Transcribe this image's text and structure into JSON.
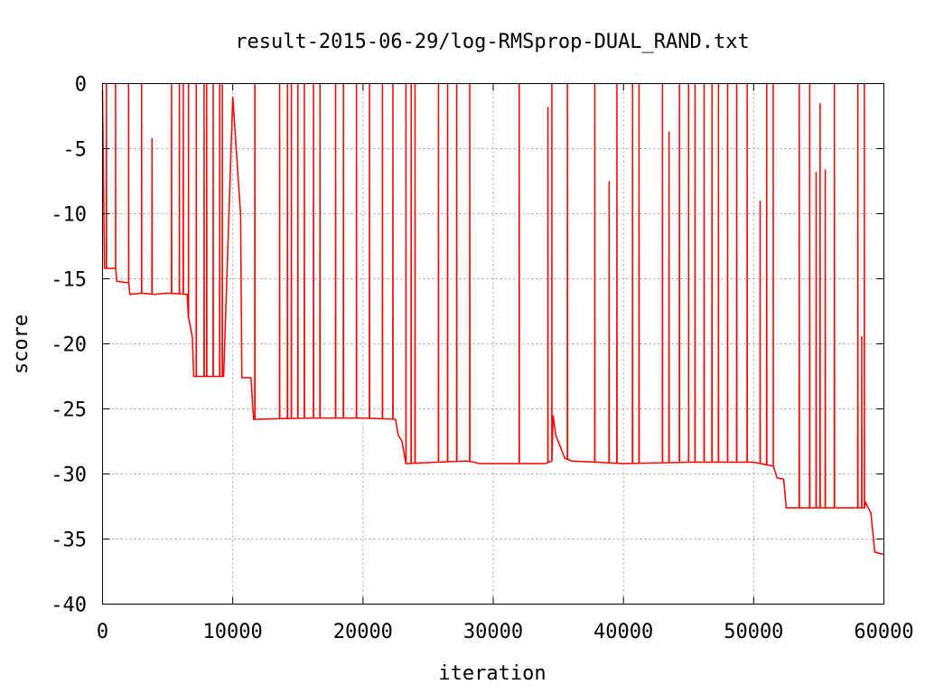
{
  "chart_data": {
    "type": "line",
    "title": "result-2015-06-29/log-RMSprop-DUAL_RAND.txt",
    "xlabel": "iteration",
    "ylabel": "score",
    "xlim": [
      0,
      60000
    ],
    "ylim": [
      -40,
      0
    ],
    "xticks": [
      0,
      10000,
      20000,
      30000,
      40000,
      50000,
      60000
    ],
    "yticks": [
      0,
      -5,
      -10,
      -15,
      -20,
      -25,
      -30,
      -35,
      -40
    ],
    "grid": true,
    "legend": "none",
    "series_color": "#ff0000",
    "baseline": [
      [
        0,
        -0.5
      ],
      [
        150,
        -14.2
      ],
      [
        1000,
        -14.2
      ],
      [
        1100,
        -15.2
      ],
      [
        2000,
        -15.3
      ],
      [
        2100,
        -16.2
      ],
      [
        3000,
        -16.1
      ],
      [
        4000,
        -16.2
      ],
      [
        5000,
        -16.1
      ],
      [
        6500,
        -16.2
      ],
      [
        6600,
        -18.0
      ],
      [
        6900,
        -19.5
      ],
      [
        7000,
        -22.5
      ],
      [
        9300,
        -22.5
      ],
      [
        10000,
        -1.0
      ],
      [
        10600,
        -10.0
      ],
      [
        10700,
        -22.6
      ],
      [
        11400,
        -22.6
      ],
      [
        11600,
        -25.8
      ],
      [
        16000,
        -25.7
      ],
      [
        20000,
        -25.7
      ],
      [
        22500,
        -25.8
      ],
      [
        22700,
        -27.0
      ],
      [
        23000,
        -27.5
      ],
      [
        23300,
        -29.2
      ],
      [
        28000,
        -29.0
      ],
      [
        29000,
        -29.2
      ],
      [
        34000,
        -29.2
      ],
      [
        34500,
        -29.0
      ],
      [
        34600,
        -25.5
      ],
      [
        34800,
        -27.0
      ],
      [
        35500,
        -28.8
      ],
      [
        36000,
        -29.0
      ],
      [
        40000,
        -29.2
      ],
      [
        45000,
        -29.1
      ],
      [
        50000,
        -29.1
      ],
      [
        51500,
        -29.4
      ],
      [
        51800,
        -30.3
      ],
      [
        52300,
        -30.4
      ],
      [
        52500,
        -32.6
      ],
      [
        55000,
        -32.6
      ],
      [
        58500,
        -32.6
      ],
      [
        58600,
        -32.2
      ],
      [
        59000,
        -33.0
      ],
      [
        59300,
        -36.0
      ],
      [
        60000,
        -36.2
      ]
    ],
    "spikes": [
      [
        300,
        0
      ],
      [
        1000,
        0
      ],
      [
        2000,
        0
      ],
      [
        3000,
        0
      ],
      [
        3800,
        -4.2
      ],
      [
        5300,
        0
      ],
      [
        5900,
        0
      ],
      [
        6200,
        0
      ],
      [
        6600,
        0
      ],
      [
        7200,
        0
      ],
      [
        7800,
        0
      ],
      [
        8000,
        0
      ],
      [
        8500,
        0
      ],
      [
        9000,
        0
      ],
      [
        9200,
        0
      ],
      [
        11700,
        0
      ],
      [
        13600,
        0
      ],
      [
        14200,
        0
      ],
      [
        14500,
        0
      ],
      [
        15000,
        0
      ],
      [
        15500,
        0
      ],
      [
        16200,
        0
      ],
      [
        16700,
        0
      ],
      [
        17900,
        0
      ],
      [
        18500,
        0
      ],
      [
        19500,
        0
      ],
      [
        20500,
        0
      ],
      [
        21500,
        0
      ],
      [
        22300,
        0
      ],
      [
        23300,
        0
      ],
      [
        23700,
        0
      ],
      [
        24000,
        0
      ],
      [
        25800,
        0
      ],
      [
        26500,
        0
      ],
      [
        27200,
        0
      ],
      [
        28200,
        0
      ],
      [
        32000,
        0
      ],
      [
        34200,
        -1.8
      ],
      [
        34500,
        0
      ],
      [
        35700,
        0
      ],
      [
        37800,
        0
      ],
      [
        38900,
        -7.5
      ],
      [
        39500,
        0
      ],
      [
        40700,
        0
      ],
      [
        41200,
        0
      ],
      [
        43000,
        0
      ],
      [
        43500,
        -3.7
      ],
      [
        44300,
        0
      ],
      [
        45000,
        0
      ],
      [
        45500,
        0
      ],
      [
        46200,
        0
      ],
      [
        46800,
        0
      ],
      [
        47300,
        0
      ],
      [
        48000,
        0
      ],
      [
        48700,
        0
      ],
      [
        49500,
        0
      ],
      [
        50500,
        -9.0
      ],
      [
        51000,
        0
      ],
      [
        51500,
        0
      ],
      [
        53500,
        0
      ],
      [
        54300,
        0
      ],
      [
        54800,
        -6.8
      ],
      [
        55100,
        -1.5
      ],
      [
        55500,
        -6.6
      ],
      [
        56200,
        0
      ],
      [
        58000,
        0
      ],
      [
        58300,
        -19.4
      ],
      [
        58500,
        0
      ]
    ]
  }
}
